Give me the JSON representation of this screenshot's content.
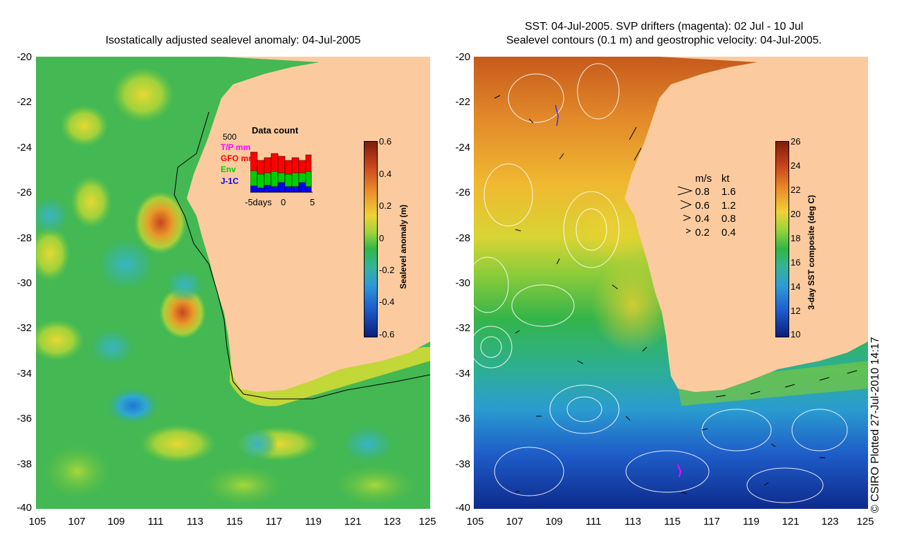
{
  "left_panel": {
    "title": "Isostatically adjusted sealevel anomaly: 04-Jul-2005",
    "y_ticks": [
      "-20",
      "-22",
      "-24",
      "-26",
      "-28",
      "-30",
      "-32",
      "-34",
      "-36",
      "-38",
      "-40"
    ],
    "x_ticks": [
      "105",
      "107",
      "109",
      "111",
      "113",
      "115",
      "117",
      "119",
      "121",
      "123",
      "125"
    ],
    "colorbar": {
      "label": "Sealevel anomaly (m)",
      "ticks": [
        "0.6",
        "0.4",
        "0.2",
        "0",
        "-0.2",
        "-0.4",
        "-0.6"
      ]
    },
    "data_count_inset": {
      "title": "Data count",
      "y_max": "500",
      "x_ticks": [
        "-5days",
        "0",
        "5"
      ],
      "legend": [
        {
          "label": "T/P mm",
          "color": "#ff00ff"
        },
        {
          "label": "GFO mm",
          "color": "#ff0000"
        },
        {
          "label": "Env",
          "color": "#00cc00"
        },
        {
          "label": "J-1C",
          "color": "#0000ff"
        }
      ]
    }
  },
  "right_panel": {
    "title_line1": "SST: 04-Jul-2005. SVP drifters (magenta): 02 Jul - 10 Jul",
    "title_line2": "Sealevel contours (0.1 m) and geostrophic velocity: 04-Jul-2005.",
    "y_ticks": [
      "-20",
      "-22",
      "-24",
      "-26",
      "-28",
      "-30",
      "-32",
      "-34",
      "-36",
      "-38",
      "-40"
    ],
    "x_ticks": [
      "105",
      "107",
      "109",
      "111",
      "113",
      "115",
      "117",
      "119",
      "121",
      "123",
      "125"
    ],
    "colorbar": {
      "label": "3-day SST composite (deg C)",
      "ticks": [
        "26",
        "24",
        "22",
        "20",
        "18",
        "16",
        "14",
        "12",
        "10"
      ]
    },
    "velocity_legend": {
      "header_ms": "m/s",
      "header_kt": "kt",
      "rows": [
        {
          "ms": "0.8",
          "kt": "1.6"
        },
        {
          "ms": "0.6",
          "kt": "1.2"
        },
        {
          "ms": "0.4",
          "kt": "0.8"
        },
        {
          "ms": "0.2",
          "kt": "0.4"
        }
      ]
    }
  },
  "credit": "© CSIRO Plotted 27-Jul-2010 14:17",
  "colors": {
    "land": "#fbcb9f",
    "ocean_sla": "#2fb84a",
    "sst_warm": "#d2691e"
  }
}
